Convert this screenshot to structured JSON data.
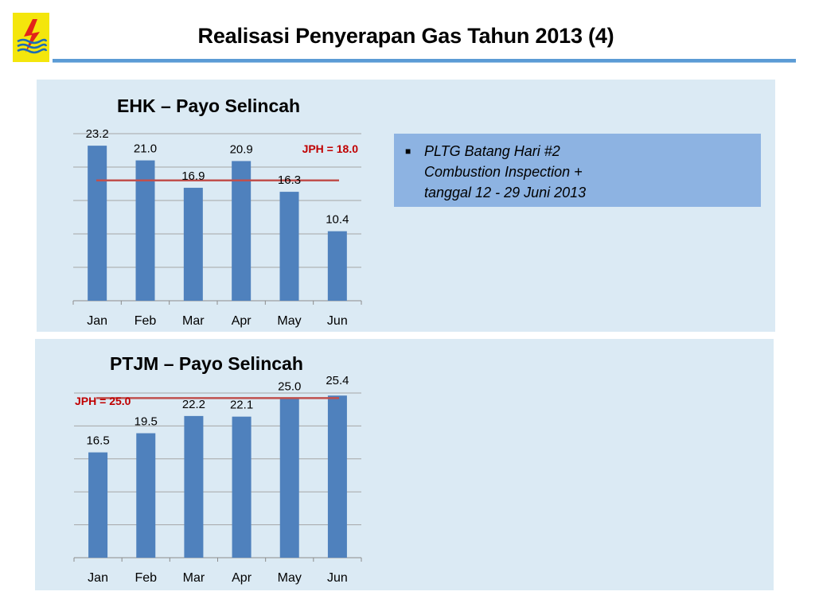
{
  "page": {
    "title": "Realisasi Penyerapan Gas Tahun 2013 (4)"
  },
  "logo": {
    "icon": "pln-lightning-logo-icon",
    "colors": {
      "background": "#f4e60c",
      "bolt": "#e2231a",
      "waves": "#1d6cb5"
    }
  },
  "note": {
    "lines": [
      "PLTG Batang Hari #2",
      "Combustion Inspection +",
      "tanggal 12 - 29 Juni 2013"
    ]
  },
  "chart_data": [
    {
      "type": "bar",
      "title": "EHK – Payo Selincah",
      "categories": [
        "Jan",
        "Feb",
        "Mar",
        "Apr",
        "May",
        "Jun"
      ],
      "values": [
        23.2,
        21.0,
        16.9,
        20.9,
        16.3,
        10.4
      ],
      "value_labels": [
        "23.2",
        "21.0",
        "16.9",
        "20.9",
        "16.3",
        "10.4"
      ],
      "reference_line": {
        "label": "JPH = 18.0",
        "value": 18.0
      },
      "ylim": [
        0,
        25
      ],
      "grid": true,
      "colors": {
        "bar": "#4f81bd",
        "line": "#c0504d",
        "ref_label": "#c00000"
      }
    },
    {
      "type": "bar",
      "title": "PTJM – Payo Selincah",
      "categories": [
        "Jan",
        "Feb",
        "Mar",
        "Apr",
        "May",
        "Jun"
      ],
      "values": [
        16.5,
        19.5,
        22.2,
        22.1,
        25.0,
        25.4
      ],
      "value_labels": [
        "16.5",
        "19.5",
        "22.2",
        "22.1",
        "25.0",
        "25.4"
      ],
      "reference_line": {
        "label": "JPH = 25.0",
        "value": 25.0
      },
      "ylim": [
        0,
        25.8
      ],
      "grid": true,
      "colors": {
        "bar": "#4f81bd",
        "line": "#c0504d",
        "ref_label": "#c00000"
      }
    }
  ]
}
